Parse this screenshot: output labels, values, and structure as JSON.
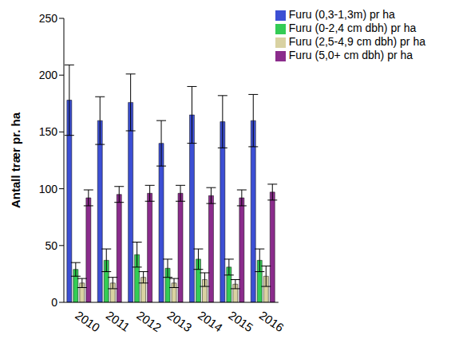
{
  "chart_data": {
    "type": "bar",
    "y_label": "Antall trær pr. ha",
    "categories": [
      "2010",
      "2011",
      "2012",
      "2013",
      "2014",
      "2015",
      "2016"
    ],
    "series": [
      {
        "name": "Furu (0,3-1,3m) pr ha",
        "color": "#3c4fd4",
        "values": [
          178,
          160,
          176,
          140,
          165,
          159,
          160
        ],
        "errors": [
          31,
          21,
          25,
          20,
          25,
          23,
          23
        ]
      },
      {
        "name": "Furu (0-2,4 cm dbh) pr ha",
        "color": "#33cc55",
        "values": [
          29,
          37,
          42,
          30,
          38,
          31,
          37
        ],
        "errors": [
          6,
          10,
          11,
          8,
          9,
          7,
          10
        ]
      },
      {
        "name": "Furu (2,5-4,9 cm dbh) pr ha",
        "color": "#d9d2a2",
        "values": [
          17,
          17,
          22,
          17,
          20,
          16,
          23
        ],
        "errors": [
          4,
          5,
          5,
          4,
          6,
          4,
          9
        ]
      },
      {
        "name": "Furu (5,0+ cm dbh) pr ha",
        "color": "#8b2c8c",
        "values": [
          92,
          95,
          96,
          96,
          94,
          92,
          97
        ],
        "errors": [
          7,
          7,
          7,
          7,
          7,
          7,
          7
        ]
      }
    ],
    "ylim": [
      0,
      250
    ],
    "yticks": [
      0,
      50,
      100,
      150,
      200,
      250
    ],
    "legend": "upper right",
    "grid": false
  }
}
